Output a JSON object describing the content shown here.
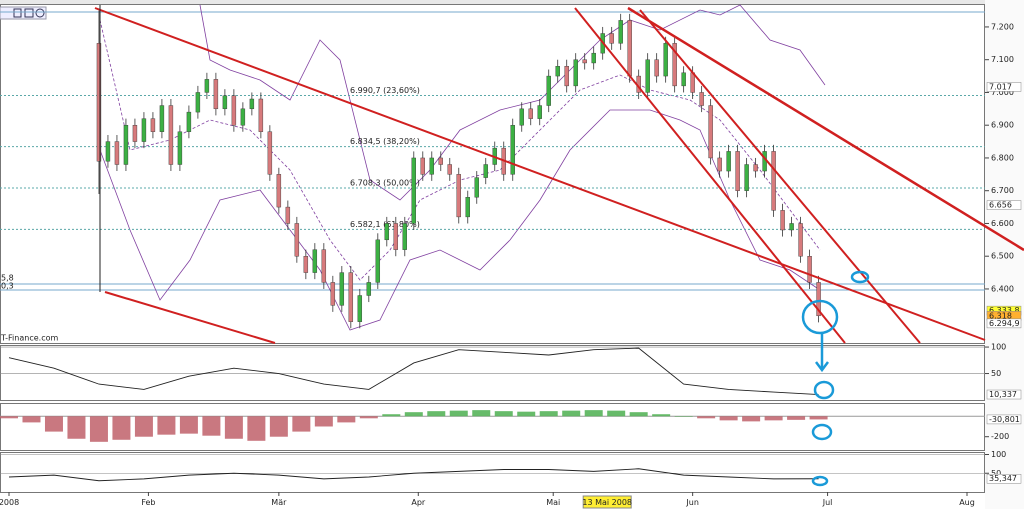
{
  "watermark": "T-Finance.com",
  "chart_data": [
    {
      "type": "candlestick",
      "x": [
        20,
        22,
        24,
        26,
        28,
        30,
        32,
        34,
        36,
        38,
        40,
        42,
        44,
        46,
        48,
        50,
        52,
        54,
        56,
        58,
        60,
        62,
        64,
        66,
        68,
        70,
        72,
        74,
        76,
        78,
        80,
        82,
        84,
        86,
        88,
        90,
        92,
        94,
        96,
        98,
        100,
        102,
        104,
        106,
        108,
        110,
        112,
        114,
        116,
        118,
        120,
        122,
        124,
        126,
        128,
        130,
        132,
        134,
        136,
        138,
        140,
        142,
        144,
        146,
        148,
        150,
        152,
        154,
        156,
        158,
        160,
        162,
        164,
        166,
        168,
        170,
        172,
        174,
        176,
        178,
        180
      ],
      "open": [
        7150,
        6790,
        6850,
        6780,
        6900,
        6850,
        6920,
        6880,
        6960,
        6780,
        6880,
        6940,
        7000,
        7040,
        6950,
        6990,
        6900,
        6950,
        6980,
        6880,
        6750,
        6650,
        6600,
        6500,
        6450,
        6520,
        6420,
        6350,
        6450,
        6300,
        6380,
        6420,
        6550,
        6600,
        6520,
        6600,
        6800,
        6750,
        6800,
        6780,
        6750,
        6620,
        6680,
        6740,
        6780,
        6830,
        6750,
        6900,
        6950,
        6920,
        6960,
        7050,
        7080,
        7020,
        7100,
        7090,
        7120,
        7180,
        7150,
        7220,
        7050,
        7000,
        7100,
        7050,
        7150,
        7020,
        7060,
        7000,
        6960,
        6800,
        6760,
        6820,
        6700,
        6780,
        6760,
        6820,
        6640,
        6580,
        6600,
        6500,
        6420
      ],
      "high": [
        7250,
        6870,
        6870,
        6920,
        6920,
        6940,
        6940,
        6980,
        6980,
        6900,
        6960,
        7020,
        7060,
        7060,
        7010,
        7010,
        6970,
        7000,
        7000,
        6900,
        6770,
        6670,
        6620,
        6520,
        6540,
        6540,
        6440,
        6470,
        6470,
        6400,
        6440,
        6570,
        6620,
        6620,
        6620,
        6820,
        6820,
        6820,
        6820,
        6800,
        6770,
        6700,
        6760,
        6800,
        6850,
        6850,
        6920,
        6970,
        6970,
        6980,
        7070,
        7100,
        7100,
        7120,
        7120,
        7140,
        7200,
        7200,
        7240,
        7240,
        7070,
        7120,
        7120,
        7170,
        7170,
        7080,
        7080,
        7020,
        6980,
        6820,
        6840,
        6840,
        6800,
        6800,
        6840,
        6840,
        6660,
        6620,
        6620,
        6520,
        6440
      ],
      "low": [
        6690,
        6770,
        6760,
        6760,
        6830,
        6830,
        6860,
        6860,
        6760,
        6760,
        6860,
        6920,
        6980,
        6930,
        6930,
        6880,
        6880,
        6930,
        6860,
        6730,
        6630,
        6580,
        6480,
        6430,
        6430,
        6400,
        6330,
        6330,
        6280,
        6280,
        6360,
        6400,
        6530,
        6500,
        6500,
        6580,
        6730,
        6730,
        6760,
        6730,
        6600,
        6600,
        6660,
        6720,
        6760,
        6730,
        6730,
        6880,
        6900,
        6900,
        6940,
        7030,
        7000,
        7000,
        7070,
        7070,
        7100,
        7130,
        7130,
        7030,
        6980,
        6980,
        7030,
        7030,
        7000,
        7000,
        6980,
        6940,
        6780,
        6740,
        6740,
        6680,
        6680,
        6740,
        6740,
        6620,
        6560,
        6560,
        6480,
        6400,
        6298
      ],
      "close": [
        6790,
        6850,
        6780,
        6900,
        6850,
        6920,
        6880,
        6960,
        6780,
        6880,
        6940,
        7000,
        7040,
        6950,
        6990,
        6900,
        6950,
        6980,
        6880,
        6750,
        6650,
        6600,
        6500,
        6450,
        6520,
        6420,
        6350,
        6450,
        6300,
        6380,
        6420,
        6550,
        6600,
        6520,
        6600,
        6800,
        6750,
        6800,
        6780,
        6750,
        6620,
        6680,
        6740,
        6780,
        6830,
        6750,
        6900,
        6950,
        6920,
        6960,
        7050,
        7080,
        7020,
        7100,
        7090,
        7120,
        7180,
        7150,
        7220,
        7050,
        7000,
        7100,
        7050,
        7150,
        7020,
        7060,
        7000,
        6960,
        6800,
        6760,
        6820,
        6700,
        6780,
        6760,
        6820,
        6640,
        6580,
        6600,
        6500,
        6420,
        6318
      ],
      "up_color": "#3cb043",
      "down_color": "#d77a7c",
      "xlim": [
        -2,
        217
      ],
      "xticks": [
        {
          "value": 0,
          "label": "2008"
        },
        {
          "value": 31,
          "label": "Feb"
        },
        {
          "value": 60,
          "label": "Mär"
        },
        {
          "value": 91,
          "label": "Apr"
        },
        {
          "value": 121,
          "label": "Mai"
        },
        {
          "value": 152,
          "label": "Jun"
        },
        {
          "value": 182,
          "label": "Jul"
        },
        {
          "value": 213,
          "label": "Aug"
        }
      ],
      "ylim": [
        6235,
        7267
      ],
      "yticks": [
        {
          "value": 6400,
          "label": "6.400"
        },
        {
          "value": 6500,
          "label": "6.500"
        },
        {
          "value": 6600,
          "label": "6.600"
        },
        {
          "value": 6700,
          "label": "6.700"
        },
        {
          "value": 6800,
          "label": "6.800"
        },
        {
          "value": 6900,
          "label": "6.900"
        },
        {
          "value": 7000,
          "label": "7.000"
        },
        {
          "value": 7100,
          "label": "7.100"
        },
        {
          "value": 7200,
          "label": "7.200"
        }
      ],
      "fib_levels": [
        {
          "value": 6990.7,
          "label": "6.990,7 (23,60%)"
        },
        {
          "value": 6834.5,
          "label": "6.834,5 (38,20%)"
        },
        {
          "value": 6708.3,
          "label": "6.708,3 (50,00%)"
        },
        {
          "value": 6582.1,
          "label": "6.582,1 (61,80%)"
        }
      ],
      "markers": [
        {
          "value": 7017,
          "label": "7.017",
          "color": "#3355aa",
          "fill": "#ffffff"
        },
        {
          "value": 6656,
          "label": "6.656",
          "color": "#c04040",
          "fill": "#ffffff"
        },
        {
          "value": 6333.8,
          "label": "6.333,8",
          "color": "#000000",
          "fill": "#ffff33"
        },
        {
          "value": 6318,
          "label": "6.318",
          "color": "#000000",
          "fill": "#ffb030"
        },
        {
          "value": 6294.9,
          "label": "6.294,9",
          "color": "#000000",
          "fill": "#ffffff"
        }
      ],
      "left_labels": [
        "5,8",
        "0,3"
      ],
      "cursor": {
        "value": 133,
        "label": "13 Mai 2008"
      }
    },
    {
      "type": "line",
      "x": [
        0,
        10,
        20,
        30,
        40,
        50,
        60,
        70,
        80,
        90,
        100,
        110,
        120,
        130,
        140,
        150,
        160,
        170,
        180
      ],
      "series": [
        {
          "color": "#222222",
          "values": [
            80,
            60,
            30,
            20,
            45,
            60,
            50,
            30,
            20,
            70,
            95,
            90,
            85,
            95,
            98,
            30,
            20,
            15,
            10.337
          ]
        }
      ],
      "ylim": [
        0,
        102
      ],
      "yticks": [
        50,
        100
      ],
      "grid": true,
      "markers": [
        {
          "value": 10.337,
          "label": "10,337",
          "color": "#000000",
          "fill": "#ffffff"
        }
      ]
    },
    {
      "type": "bar",
      "x": [
        0,
        5,
        10,
        15,
        20,
        25,
        30,
        35,
        40,
        45,
        50,
        55,
        60,
        65,
        70,
        75,
        80,
        85,
        90,
        95,
        100,
        105,
        110,
        115,
        120,
        125,
        130,
        135,
        140,
        145,
        150,
        155,
        160,
        165,
        170,
        175,
        180
      ],
      "values": [
        -20,
        -60,
        -150,
        -220,
        -250,
        -230,
        -200,
        -180,
        -170,
        -190,
        -220,
        -240,
        -200,
        -150,
        -100,
        -60,
        -20,
        20,
        40,
        50,
        55,
        60,
        50,
        45,
        50,
        55,
        60,
        55,
        40,
        20,
        0,
        -20,
        -40,
        -50,
        -40,
        -35,
        -31
      ],
      "up_color": "#4caf50",
      "down_color": "#c0606a",
      "ylim": [
        -330,
        120
      ],
      "yticks": [
        -200
      ],
      "grid": false,
      "markers": [
        {
          "value": -30.801,
          "label": "-30,801",
          "color": "#c04040",
          "fill": "#ffffff"
        }
      ]
    },
    {
      "type": "line",
      "x": [
        0,
        10,
        20,
        30,
        40,
        50,
        60,
        70,
        80,
        90,
        100,
        110,
        120,
        130,
        140,
        150,
        160,
        170,
        180
      ],
      "series": [
        {
          "color": "#222222",
          "values": [
            40,
            45,
            30,
            35,
            45,
            50,
            45,
            35,
            40,
            50,
            55,
            60,
            60,
            55,
            62,
            45,
            40,
            35,
            35.347
          ]
        }
      ],
      "ylim": [
        0,
        104
      ],
      "yticks": [
        50,
        100
      ],
      "grid": true,
      "markers": [
        {
          "value": 35.347,
          "label": "35,347",
          "color": "#000000",
          "fill": "#ffffff"
        }
      ]
    }
  ]
}
